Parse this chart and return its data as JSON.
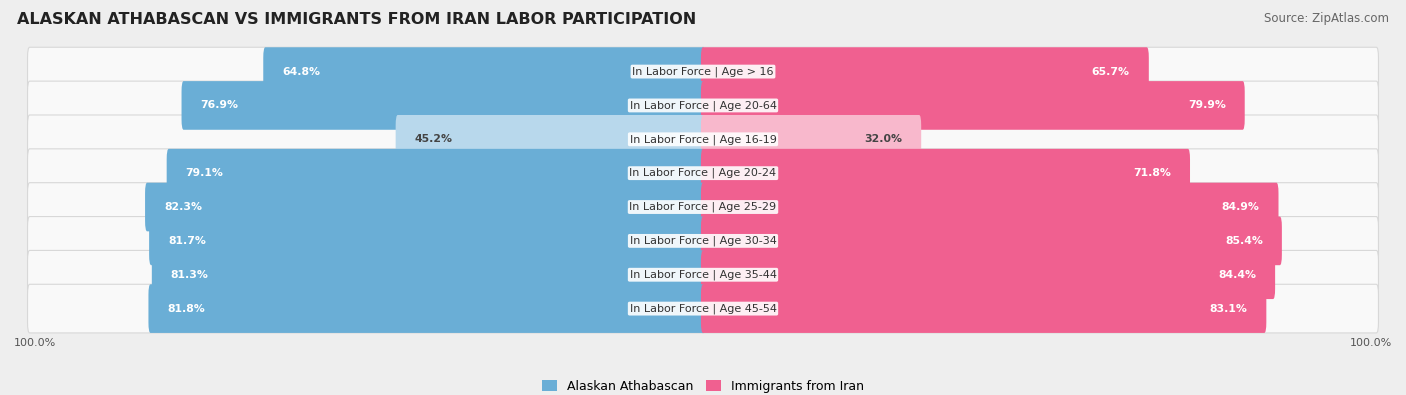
{
  "title": "ALASKAN ATHABASCAN VS IMMIGRANTS FROM IRAN LABOR PARTICIPATION",
  "source": "Source: ZipAtlas.com",
  "categories": [
    "In Labor Force | Age > 16",
    "In Labor Force | Age 20-64",
    "In Labor Force | Age 16-19",
    "In Labor Force | Age 20-24",
    "In Labor Force | Age 25-29",
    "In Labor Force | Age 30-34",
    "In Labor Force | Age 35-44",
    "In Labor Force | Age 45-54"
  ],
  "left_values": [
    64.8,
    76.9,
    45.2,
    79.1,
    82.3,
    81.7,
    81.3,
    81.8
  ],
  "right_values": [
    65.7,
    79.9,
    32.0,
    71.8,
    84.9,
    85.4,
    84.4,
    83.1
  ],
  "left_color": "#6aaed6",
  "right_color": "#f06090",
  "left_color_light": "#b8d8ec",
  "right_color_light": "#f8b8cc",
  "left_label": "Alaskan Athabascan",
  "right_label": "Immigrants from Iran",
  "bg_color": "#eeeeee",
  "row_bg_color": "#f9f9f9",
  "row_edge_color": "#d8d8d8",
  "max_value": 100.0,
  "title_fontsize": 11.5,
  "source_fontsize": 8.5,
  "label_fontsize": 8.0,
  "value_fontsize": 7.8
}
